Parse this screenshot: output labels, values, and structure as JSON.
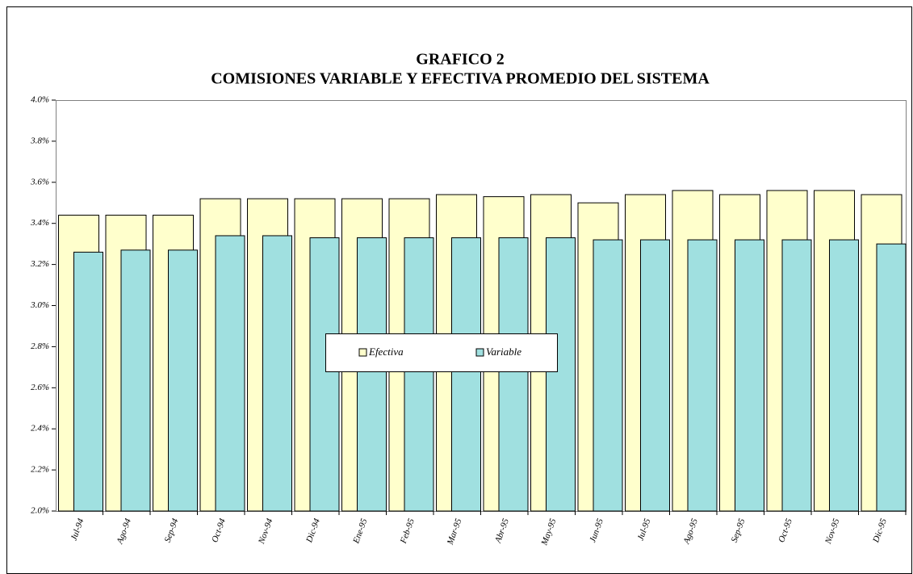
{
  "chart_data": {
    "type": "bar",
    "title": "GRAFICO 2",
    "subtitle": "COMISIONES VARIABLE Y EFECTIVA PROMEDIO DEL SISTEMA",
    "categories": [
      "Jul-94",
      "Ago-94",
      "Sep-94",
      "Oct-94",
      "Nov-94",
      "Dic-94",
      "Ene-95",
      "Feb-95",
      "Mar-95",
      "Abr-95",
      "May-95",
      "Jun-95",
      "Jul-95",
      "Ago-95",
      "Sep-95",
      "Oct-95",
      "Nov-95",
      "Dic-95"
    ],
    "series": [
      {
        "name": "Efectiva",
        "color": "#ffffcc",
        "values": [
          3.44,
          3.44,
          3.44,
          3.52,
          3.52,
          3.52,
          3.52,
          3.52,
          3.54,
          3.53,
          3.54,
          3.5,
          3.54,
          3.56,
          3.54,
          3.56,
          3.56,
          3.54
        ]
      },
      {
        "name": "Variable",
        "color": "#a0e0e0",
        "values": [
          3.26,
          3.27,
          3.27,
          3.34,
          3.34,
          3.33,
          3.33,
          3.33,
          3.33,
          3.33,
          3.33,
          3.32,
          3.32,
          3.32,
          3.32,
          3.32,
          3.32,
          3.3
        ]
      }
    ],
    "ylim": [
      2.0,
      4.0
    ],
    "yticks": [
      {
        "value": 2.0,
        "label": "2.0%"
      },
      {
        "value": 2.2,
        "label": "2.2%"
      },
      {
        "value": 2.4,
        "label": "2.4%"
      },
      {
        "value": 2.6,
        "label": "2.6%"
      },
      {
        "value": 2.8,
        "label": "2.8%"
      },
      {
        "value": 3.0,
        "label": "3.0%"
      },
      {
        "value": 3.2,
        "label": "3.2%"
      },
      {
        "value": 3.4,
        "label": "3.4%"
      },
      {
        "value": 3.6,
        "label": "3.6%"
      },
      {
        "value": 3.8,
        "label": "3.8%"
      },
      {
        "value": 4.0,
        "label": "4.0%"
      }
    ],
    "grid": false,
    "legend": "center"
  }
}
